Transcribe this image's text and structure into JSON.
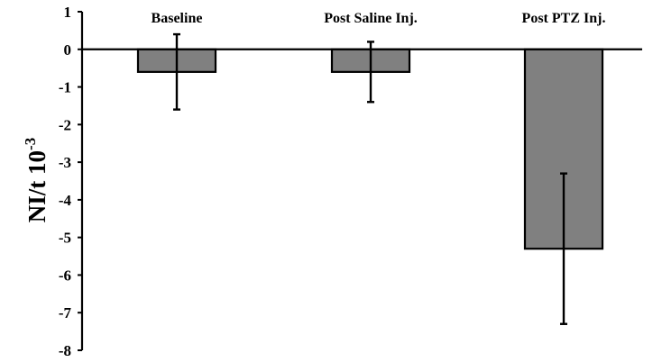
{
  "chart_data": {
    "type": "bar",
    "categories": [
      "Baseline",
      "Post Saline Inj.",
      "Post PTZ Inj."
    ],
    "values": [
      -0.6,
      -0.6,
      -5.3
    ],
    "error_upper": [
      0.4,
      0.2,
      -3.3
    ],
    "error_lower": [
      -1.6,
      -1.4,
      -7.3
    ],
    "ylabel_main": "NI/t 10",
    "ylabel_exponent": "-3",
    "xlabel": "",
    "ylim": [
      -8,
      1
    ],
    "yticks": [
      1,
      0,
      -1,
      -2,
      -3,
      -4,
      -5,
      -6,
      -7,
      -8
    ],
    "ytick_labels": [
      "1",
      "0",
      "-1",
      "-2",
      "-3",
      "-4",
      "-5",
      "-6",
      "-7",
      "-8"
    ],
    "category_label_position": "top",
    "grid": false,
    "colors": {
      "bar_fill": "#808080",
      "bar_stroke": "#000000",
      "axis": "#000000",
      "error_bar": "#000000"
    }
  }
}
